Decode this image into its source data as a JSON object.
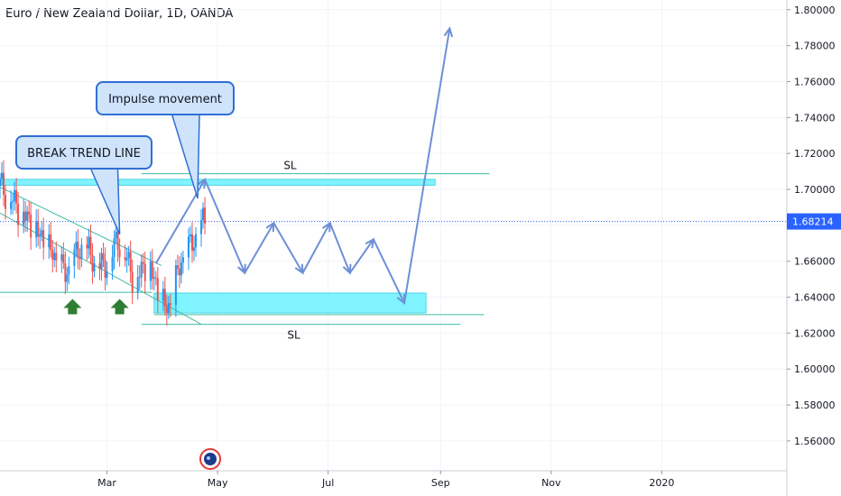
{
  "header": {
    "title": "Euro / New Zealand Dollar, 1D, OANDA"
  },
  "chart_data": {
    "type": "candlestick",
    "symbol": "EURNZD",
    "ylim": [
      1.5434,
      1.8054
    ],
    "y_ticks": [
      1.56,
      1.58,
      1.6,
      1.62,
      1.64,
      1.66,
      1.68,
      1.7,
      1.72,
      1.74,
      1.76,
      1.78,
      1.8
    ],
    "y_tick_labels": [
      "1.56000",
      "1.58000",
      "1.60000",
      "1.62000",
      "1.64000",
      "1.66000",
      "1.68000",
      "1.70000",
      "1.72000",
      "1.74000",
      "1.76000",
      "1.78000",
      "1.80000"
    ],
    "x_ticks": [
      {
        "label": "Mar",
        "date": "2019-03-01"
      },
      {
        "label": "May",
        "date": "2019-05-01"
      },
      {
        "label": "Jul",
        "date": "2019-07-01"
      },
      {
        "label": "Sep",
        "date": "2019-09-01"
      },
      {
        "label": "Nov",
        "date": "2019-11-01"
      },
      {
        "label": "2020",
        "date": "2020-01-01"
      }
    ],
    "x_range": [
      "2019-01-01",
      "2020-03-10"
    ],
    "current_price": 1.68214,
    "current_price_label": "1.68214",
    "candles_range": {
      "start": "2019-01-01",
      "end": "2019-04-24",
      "open": 1.702,
      "close": 1.682,
      "high": 1.693,
      "low": 1.63
    },
    "zones": [
      {
        "name": "resistance",
        "x": [
          "2019-01-01",
          "2019-08-29"
        ],
        "y": [
          1.7023,
          1.7056
        ],
        "color": "#7ff3ff"
      },
      {
        "name": "support",
        "x": [
          "2019-03-27",
          "2019-08-24"
        ],
        "y": [
          1.6312,
          1.6423
        ],
        "color": "#7ff3ff"
      }
    ],
    "lines": [
      {
        "name": "sl-upper",
        "x": [
          "2019-03-20",
          "2019-09-28"
        ],
        "y": [
          1.7087,
          1.7087
        ],
        "color": "#3dbda4"
      },
      {
        "name": "support-lower",
        "x": [
          "2019-03-27",
          "2019-09-25"
        ],
        "y": [
          1.6303,
          1.6303
        ],
        "color": "#3dbda4"
      },
      {
        "name": "sl-lower",
        "x": [
          "2019-03-20",
          "2019-09-12"
        ],
        "y": [
          1.6249,
          1.6249
        ],
        "color": "#3dbda4"
      },
      {
        "name": "support-left",
        "x": [
          "2019-01-01",
          "2019-03-26"
        ],
        "y": [
          1.6427,
          1.6427
        ],
        "color": "#3dbda4"
      },
      {
        "name": "trend-line",
        "x": [
          "2019-01-01",
          "2019-04-22"
        ],
        "y": [
          1.6868,
          1.6249
        ],
        "color": "#3dbda4"
      },
      {
        "name": "trend-line-2",
        "x": [
          "2019-01-01",
          "2019-03-31"
        ],
        "y": [
          1.7013,
          1.6576
        ],
        "color": "#3dbda4"
      }
    ],
    "projection": {
      "color": "#6f8fd6",
      "points": [
        {
          "x": "2019-03-28",
          "y": 1.6588
        },
        {
          "x": "2019-04-24",
          "y": 1.7055
        },
        {
          "x": "2019-05-16",
          "y": 1.6535
        },
        {
          "x": "2019-06-01",
          "y": 1.6813
        },
        {
          "x": "2019-06-17",
          "y": 1.6535
        },
        {
          "x": "2019-07-02",
          "y": 1.6813
        },
        {
          "x": "2019-07-13",
          "y": 1.6535
        },
        {
          "x": "2019-07-26",
          "y": 1.6722
        },
        {
          "x": "2019-08-12",
          "y": 1.6367
        },
        {
          "x": "2019-09-06",
          "y": 1.7896
        }
      ]
    },
    "annotations": [
      {
        "text": "BREAK TREND LINE",
        "kind": "callout"
      },
      {
        "text": "Impulse movement",
        "kind": "callout"
      },
      {
        "text": "SL",
        "kind": "label"
      },
      {
        "text": "SL",
        "kind": "label"
      }
    ],
    "markers": [
      {
        "kind": "up-arrow",
        "x": "2019-02-10",
        "color": "#2e7d32"
      },
      {
        "kind": "up-arrow",
        "x": "2019-03-08",
        "color": "#2e7d32"
      }
    ]
  }
}
